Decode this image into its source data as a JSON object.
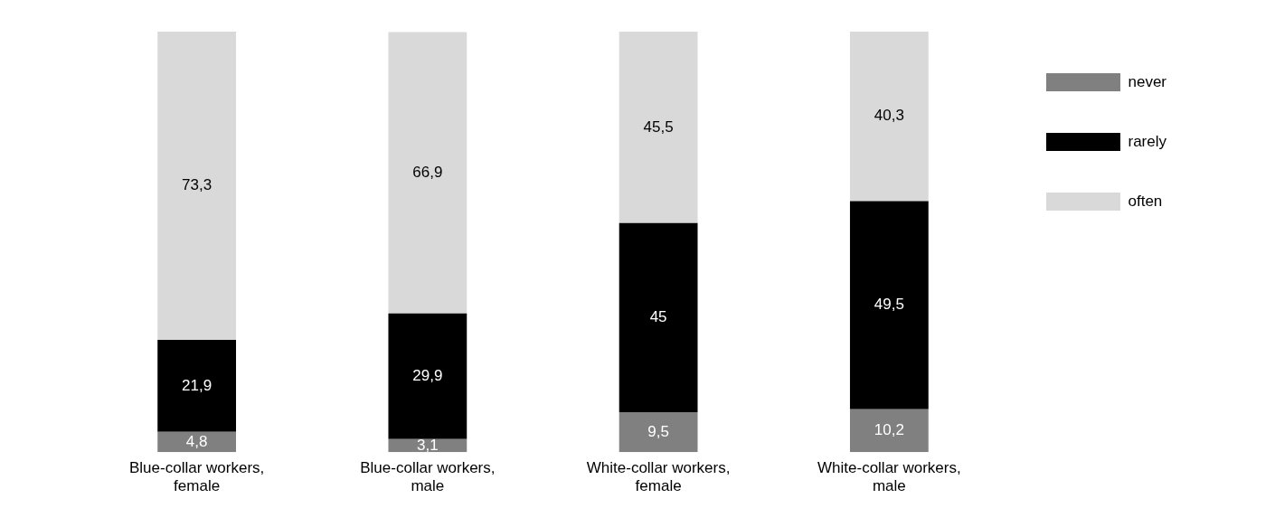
{
  "chart_data": {
    "type": "bar",
    "stacked": true,
    "categories": [
      "Blue-collar workers, female",
      "Blue-collar workers, male",
      "White-collar workers, female",
      "White-collar workers, male"
    ],
    "series": [
      {
        "name": "never",
        "color": "#808080",
        "values": [
          4.8,
          3.1,
          9.5,
          10.2
        ],
        "value_labels": [
          "4,8",
          "3,1",
          "9,5",
          "10,2"
        ]
      },
      {
        "name": "rarely",
        "color": "#000000",
        "values": [
          21.9,
          29.9,
          45,
          49.5
        ],
        "value_labels": [
          "21,9",
          "29,9",
          "45",
          "49,5"
        ]
      },
      {
        "name": "often",
        "color": "#d9d9d9",
        "values": [
          73.3,
          66.9,
          45.5,
          40.3
        ],
        "value_labels": [
          "73,3",
          "66,9",
          "45,5",
          "40,3"
        ]
      }
    ],
    "ylim": [
      0,
      100
    ],
    "tick_labels": "x",
    "grid": false,
    "legend": "top right"
  }
}
